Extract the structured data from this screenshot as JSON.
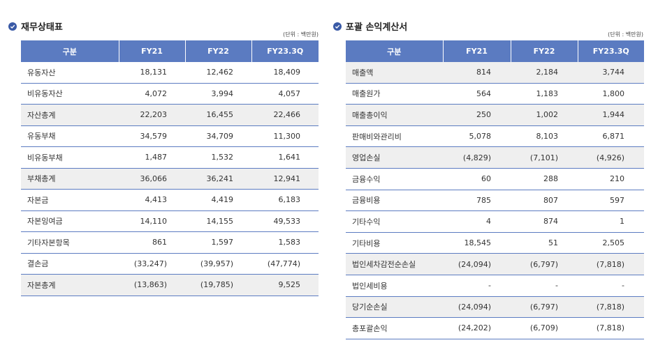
{
  "balance_sheet": {
    "title": "재무상태표",
    "unit": "(단위 : 백만원)",
    "columns": [
      "구분",
      "FY21",
      "FY22",
      "FY23.3Q"
    ],
    "rows": [
      {
        "label": "유동자산",
        "values": [
          "18,131",
          "12,462",
          "18,409"
        ],
        "shaded": false
      },
      {
        "label": "비유동자산",
        "values": [
          "4,072",
          "3,994",
          "4,057"
        ],
        "shaded": false
      },
      {
        "label": "자산총계",
        "values": [
          "22,203",
          "16,455",
          "22,466"
        ],
        "shaded": true
      },
      {
        "label": "유동부채",
        "values": [
          "34,579",
          "34,709",
          "11,300"
        ],
        "shaded": false
      },
      {
        "label": "비유동부채",
        "values": [
          "1,487",
          "1,532",
          "1,641"
        ],
        "shaded": false
      },
      {
        "label": "부채총계",
        "values": [
          "36,066",
          "36,241",
          "12,941"
        ],
        "shaded": true
      },
      {
        "label": "자본금",
        "values": [
          "4,413",
          "4,419",
          "6,183"
        ],
        "shaded": false
      },
      {
        "label": "자본잉여금",
        "values": [
          "14,110",
          "14,155",
          "49,533"
        ],
        "shaded": false
      },
      {
        "label": "기타자본항목",
        "values": [
          "861",
          "1,597",
          "1,583"
        ],
        "shaded": false
      },
      {
        "label": "결손금",
        "values": [
          "(33,247)",
          "(39,957)",
          "(47,774)"
        ],
        "shaded": false
      },
      {
        "label": "자본총계",
        "values": [
          "(13,863)",
          "(19,785)",
          "9,525"
        ],
        "shaded": true
      }
    ]
  },
  "income_statement": {
    "title": "포괄 손익계산서",
    "unit": "(단위 : 백만원)",
    "columns": [
      "구분",
      "FY21",
      "FY22",
      "FY23.3Q"
    ],
    "rows": [
      {
        "label": "매출액",
        "values": [
          "814",
          "2,184",
          "3,744"
        ],
        "shaded": true
      },
      {
        "label": "매출원가",
        "values": [
          "564",
          "1,183",
          "1,800"
        ],
        "shaded": false
      },
      {
        "label": "매출총이익",
        "values": [
          "250",
          "1,002",
          "1,944"
        ],
        "shaded": true
      },
      {
        "label": "판매비와관리비",
        "values": [
          "5,078",
          "8,103",
          "6,871"
        ],
        "shaded": false
      },
      {
        "label": "영업손실",
        "values": [
          "(4,829)",
          "(7,101)",
          "(4,926)"
        ],
        "shaded": true
      },
      {
        "label": "금융수익",
        "values": [
          "60",
          "288",
          "210"
        ],
        "shaded": false
      },
      {
        "label": "금융비용",
        "values": [
          "785",
          "807",
          "597"
        ],
        "shaded": false
      },
      {
        "label": "기타수익",
        "values": [
          "4",
          "874",
          "1"
        ],
        "shaded": false
      },
      {
        "label": "기타비용",
        "values": [
          "18,545",
          "51",
          "2,505"
        ],
        "shaded": false
      },
      {
        "label": "법인세차감전순손실",
        "values": [
          "(24,094)",
          "(6,797)",
          "(7,818)"
        ],
        "shaded": true
      },
      {
        "label": "법인세비용",
        "values": [
          "-",
          "-",
          "-"
        ],
        "shaded": false
      },
      {
        "label": "당기순손실",
        "values": [
          "(24,094)",
          "(6,797)",
          "(7,818)"
        ],
        "shaded": true
      },
      {
        "label": "총포괄손익",
        "values": [
          "(24,202)",
          "(6,709)",
          "(7,818)"
        ],
        "shaded": false
      }
    ]
  },
  "icon": "check-circle-icon",
  "colors": {
    "header": "#5b7bc1",
    "accent": "#3a5aa6",
    "shade": "#efefef"
  }
}
